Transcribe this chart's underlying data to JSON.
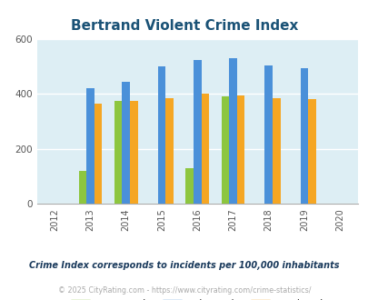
{
  "title": "Bertrand Violent Crime Index",
  "years": [
    2012,
    2013,
    2014,
    2015,
    2016,
    2017,
    2018,
    2019,
    2020
  ],
  "bar_years": [
    2013,
    2014,
    2015,
    2016,
    2017,
    2018,
    2019
  ],
  "bertrand": [
    120,
    375,
    0,
    130,
    390,
    0,
    0
  ],
  "missouri": [
    420,
    445,
    500,
    525,
    530,
    505,
    495
  ],
  "national": [
    365,
    375,
    385,
    400,
    395,
    385,
    380
  ],
  "color_bertrand": "#8dc63f",
  "color_missouri": "#4a90d9",
  "color_national": "#f5a623",
  "ylim": [
    0,
    600
  ],
  "yticks": [
    0,
    200,
    400,
    600
  ],
  "bg_color": "#ddeef4",
  "title_color": "#1a5276",
  "subtitle": "Crime Index corresponds to incidents per 100,000 inhabitants",
  "footer": "© 2025 CityRating.com - https://www.cityrating.com/crime-statistics/",
  "subtitle_color": "#1a3a5c",
  "footer_color": "#aaaaaa",
  "bar_width": 0.22
}
